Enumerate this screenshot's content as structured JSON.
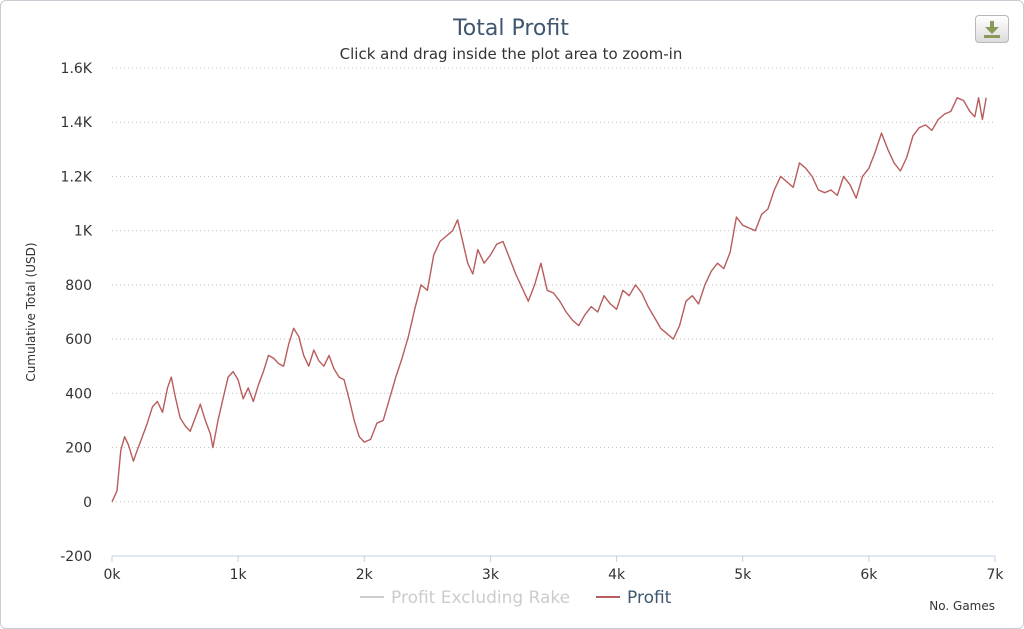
{
  "chart_data": {
    "type": "line",
    "title": "Total Profit",
    "subtitle": "Click and drag inside the plot area to zoom-in",
    "ylabel": "Cumulative Total (USD)",
    "xlabel": "No. Games",
    "xlim": [
      0,
      7000
    ],
    "ylim": [
      -200,
      1600
    ],
    "x_ticks": [
      0,
      1000,
      2000,
      3000,
      4000,
      5000,
      6000,
      7000
    ],
    "x_tick_labels": [
      "0k",
      "1k",
      "2k",
      "3k",
      "4k",
      "5k",
      "6k",
      "7k"
    ],
    "y_ticks": [
      -200,
      0,
      200,
      400,
      600,
      800,
      1000,
      1200,
      1400,
      1600
    ],
    "y_tick_labels": [
      "-200",
      "0",
      "200",
      "400",
      "600",
      "800",
      "1K",
      "1.2K",
      "1.4K",
      "1.6K"
    ],
    "grid": "horizontal-dotted",
    "legend_position": "bottom-center",
    "series": [
      {
        "name": "Profit Excluding Rake",
        "color": "#cccccc",
        "visible": false,
        "points": []
      },
      {
        "name": "Profit",
        "color": "#b85c5c",
        "visible": true,
        "points": [
          [
            0,
            0
          ],
          [
            40,
            40
          ],
          [
            70,
            190
          ],
          [
            100,
            240
          ],
          [
            130,
            210
          ],
          [
            170,
            150
          ],
          [
            200,
            190
          ],
          [
            240,
            240
          ],
          [
            280,
            290
          ],
          [
            320,
            350
          ],
          [
            360,
            370
          ],
          [
            400,
            330
          ],
          [
            440,
            420
          ],
          [
            470,
            460
          ],
          [
            500,
            390
          ],
          [
            540,
            310
          ],
          [
            580,
            280
          ],
          [
            620,
            260
          ],
          [
            660,
            310
          ],
          [
            700,
            360
          ],
          [
            740,
            300
          ],
          [
            780,
            250
          ],
          [
            800,
            200
          ],
          [
            840,
            300
          ],
          [
            880,
            380
          ],
          [
            920,
            460
          ],
          [
            960,
            480
          ],
          [
            1000,
            450
          ],
          [
            1040,
            380
          ],
          [
            1080,
            420
          ],
          [
            1120,
            370
          ],
          [
            1160,
            430
          ],
          [
            1200,
            480
          ],
          [
            1240,
            540
          ],
          [
            1280,
            530
          ],
          [
            1320,
            510
          ],
          [
            1360,
            500
          ],
          [
            1400,
            580
          ],
          [
            1440,
            640
          ],
          [
            1480,
            610
          ],
          [
            1520,
            540
          ],
          [
            1560,
            500
          ],
          [
            1600,
            560
          ],
          [
            1640,
            520
          ],
          [
            1680,
            500
          ],
          [
            1720,
            540
          ],
          [
            1760,
            490
          ],
          [
            1800,
            460
          ],
          [
            1840,
            450
          ],
          [
            1880,
            380
          ],
          [
            1920,
            300
          ],
          [
            1960,
            240
          ],
          [
            2000,
            220
          ],
          [
            2050,
            230
          ],
          [
            2100,
            290
          ],
          [
            2150,
            300
          ],
          [
            2200,
            380
          ],
          [
            2250,
            460
          ],
          [
            2300,
            530
          ],
          [
            2350,
            610
          ],
          [
            2400,
            710
          ],
          [
            2450,
            800
          ],
          [
            2500,
            780
          ],
          [
            2550,
            910
          ],
          [
            2600,
            960
          ],
          [
            2650,
            980
          ],
          [
            2700,
            1000
          ],
          [
            2740,
            1040
          ],
          [
            2780,
            960
          ],
          [
            2820,
            880
          ],
          [
            2860,
            840
          ],
          [
            2900,
            930
          ],
          [
            2950,
            880
          ],
          [
            3000,
            910
          ],
          [
            3050,
            950
          ],
          [
            3100,
            960
          ],
          [
            3150,
            900
          ],
          [
            3200,
            840
          ],
          [
            3250,
            790
          ],
          [
            3300,
            740
          ],
          [
            3350,
            800
          ],
          [
            3400,
            880
          ],
          [
            3450,
            780
          ],
          [
            3500,
            770
          ],
          [
            3550,
            740
          ],
          [
            3600,
            700
          ],
          [
            3650,
            670
          ],
          [
            3700,
            650
          ],
          [
            3750,
            690
          ],
          [
            3800,
            720
          ],
          [
            3850,
            700
          ],
          [
            3900,
            760
          ],
          [
            3950,
            730
          ],
          [
            4000,
            710
          ],
          [
            4050,
            780
          ],
          [
            4100,
            760
          ],
          [
            4150,
            800
          ],
          [
            4200,
            770
          ],
          [
            4250,
            720
          ],
          [
            4300,
            680
          ],
          [
            4350,
            640
          ],
          [
            4400,
            620
          ],
          [
            4450,
            600
          ],
          [
            4500,
            650
          ],
          [
            4550,
            740
          ],
          [
            4600,
            760
          ],
          [
            4650,
            730
          ],
          [
            4700,
            800
          ],
          [
            4750,
            850
          ],
          [
            4800,
            880
          ],
          [
            4850,
            860
          ],
          [
            4900,
            920
          ],
          [
            4950,
            1050
          ],
          [
            5000,
            1020
          ],
          [
            5050,
            1010
          ],
          [
            5100,
            1000
          ],
          [
            5150,
            1060
          ],
          [
            5200,
            1080
          ],
          [
            5250,
            1150
          ],
          [
            5300,
            1200
          ],
          [
            5350,
            1180
          ],
          [
            5400,
            1160
          ],
          [
            5450,
            1250
          ],
          [
            5500,
            1230
          ],
          [
            5550,
            1200
          ],
          [
            5600,
            1150
          ],
          [
            5650,
            1140
          ],
          [
            5700,
            1150
          ],
          [
            5750,
            1130
          ],
          [
            5800,
            1200
          ],
          [
            5850,
            1170
          ],
          [
            5900,
            1120
          ],
          [
            5950,
            1200
          ],
          [
            6000,
            1230
          ],
          [
            6050,
            1290
          ],
          [
            6100,
            1360
          ],
          [
            6150,
            1300
          ],
          [
            6200,
            1250
          ],
          [
            6250,
            1220
          ],
          [
            6300,
            1270
          ],
          [
            6350,
            1350
          ],
          [
            6400,
            1380
          ],
          [
            6450,
            1390
          ],
          [
            6500,
            1370
          ],
          [
            6550,
            1410
          ],
          [
            6600,
            1430
          ],
          [
            6650,
            1440
          ],
          [
            6700,
            1490
          ],
          [
            6750,
            1480
          ],
          [
            6800,
            1440
          ],
          [
            6840,
            1420
          ],
          [
            6870,
            1490
          ],
          [
            6900,
            1410
          ],
          [
            6930,
            1490
          ]
        ]
      }
    ]
  },
  "ui": {
    "export_icon": "download-icon"
  }
}
